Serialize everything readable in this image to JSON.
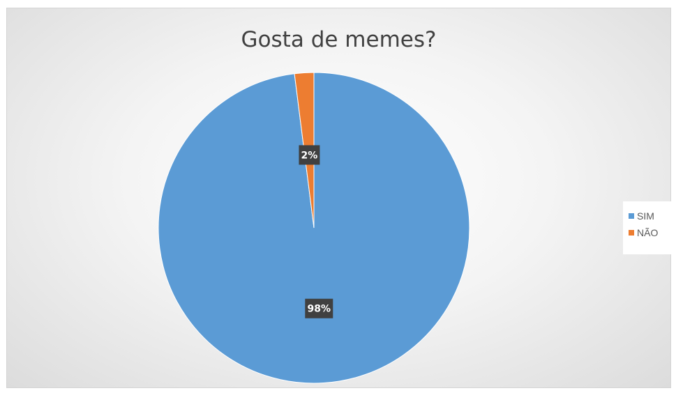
{
  "colors": {
    "sim": "#5b9bd5",
    "nao": "#ed7d31",
    "label_bg": "#404040"
  },
  "chart_data": {
    "type": "pie",
    "title": "Gosta de memes?",
    "categories": [
      "SIM",
      "NÃO"
    ],
    "values": [
      98,
      2
    ],
    "data_labels": [
      "98%",
      "2%"
    ],
    "legend_position": "right"
  }
}
